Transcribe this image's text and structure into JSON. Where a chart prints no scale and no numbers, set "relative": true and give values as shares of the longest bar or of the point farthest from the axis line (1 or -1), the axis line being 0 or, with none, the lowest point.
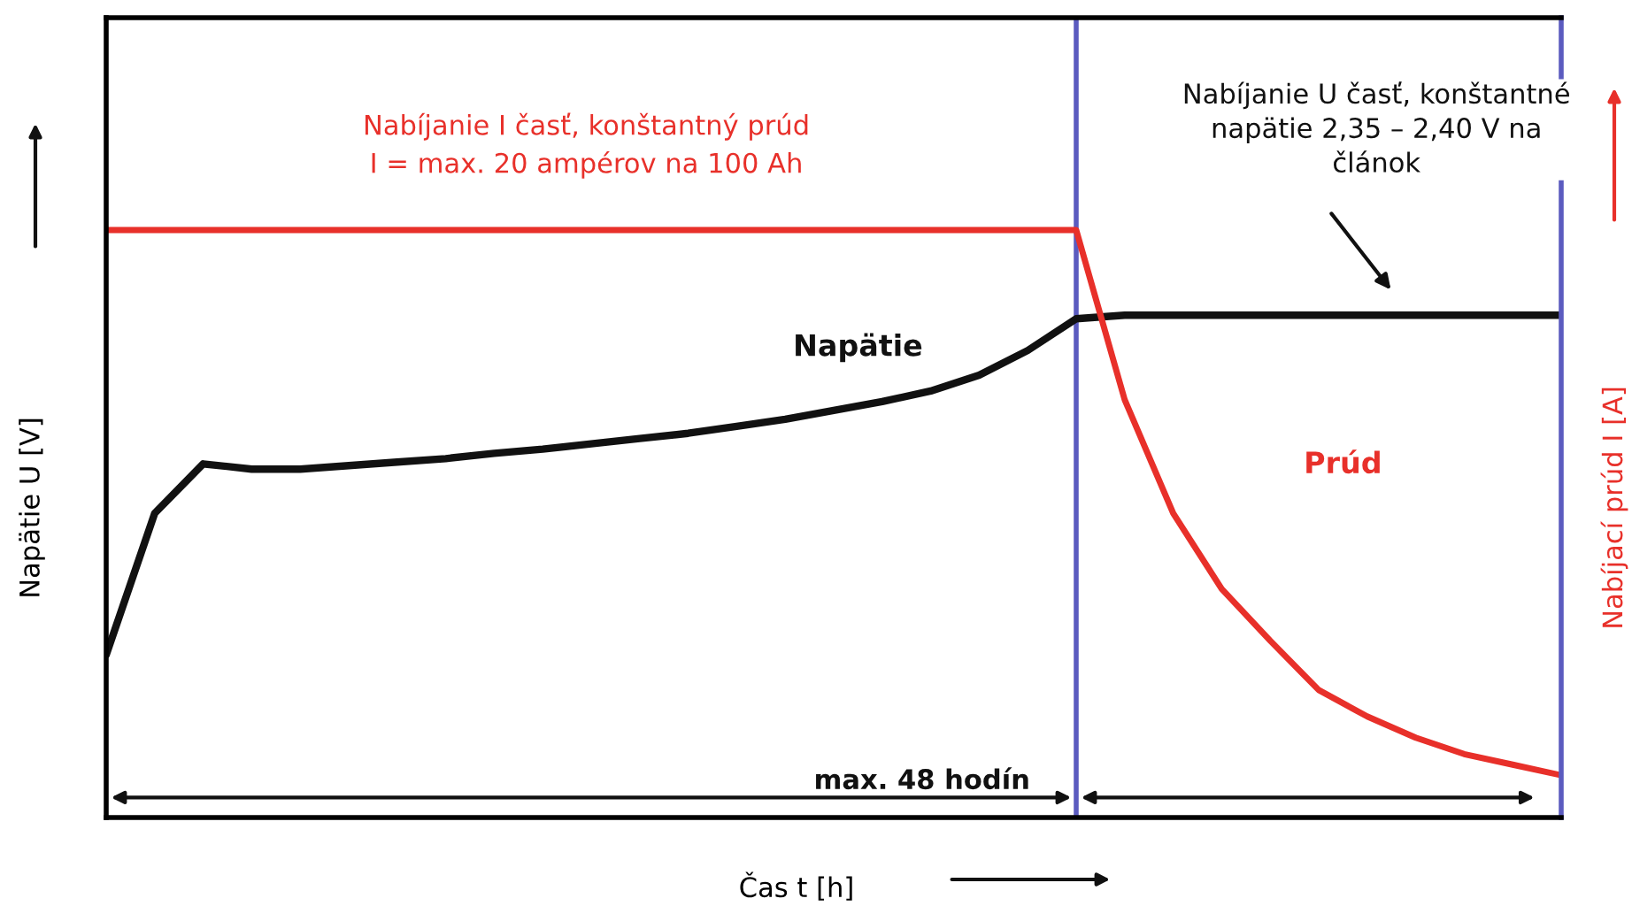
{
  "chart_data": {
    "type": "line",
    "relative": true,
    "grid": false,
    "legend": false,
    "xlabel": "Čas t [h]",
    "ylabel": "Napätie U [V]",
    "y2label": "Nabíjací prúd I [A]",
    "categories": [
      null,
      null,
      null,
      null,
      null,
      null,
      null,
      null,
      null,
      null,
      null,
      null,
      null,
      null,
      null,
      null,
      null,
      null,
      null,
      null,
      null,
      null,
      null,
      null,
      null,
      null,
      null,
      null,
      null,
      null,
      null
    ],
    "series": [
      {
        "name": "Napätie",
        "color": "#111111",
        "values": [
          0.277,
          0.518,
          0.602,
          0.593,
          0.593,
          0.599,
          0.605,
          0.611,
          0.62,
          0.627,
          0.636,
          0.645,
          0.654,
          0.666,
          0.678,
          0.693,
          0.708,
          0.726,
          0.753,
          0.795,
          0.849,
          0.855,
          0.855,
          0.855,
          0.855,
          0.855,
          0.855,
          0.855,
          0.855,
          0.855,
          0.855
        ]
      },
      {
        "name": "Prúd",
        "color": "#e8302a",
        "values": [
          1,
          1,
          1,
          1,
          1,
          1,
          1,
          1,
          1,
          1,
          1,
          1,
          1,
          1,
          1,
          1,
          1,
          1,
          1,
          1,
          1,
          0.711,
          0.518,
          0.389,
          0.301,
          0.217,
          0.172,
          0.136,
          0.108,
          0.09,
          0.072
        ]
      }
    ],
    "annotations": [
      "Nabíjanie I časť, konštantný prúd\nI = max. 20 ampérov na 100 Ah",
      "Nabíjanie U časť, konštantné\nnapätie 2,35 – 2,40 V na\nčlánok",
      "max. 48 hodín"
    ]
  }
}
